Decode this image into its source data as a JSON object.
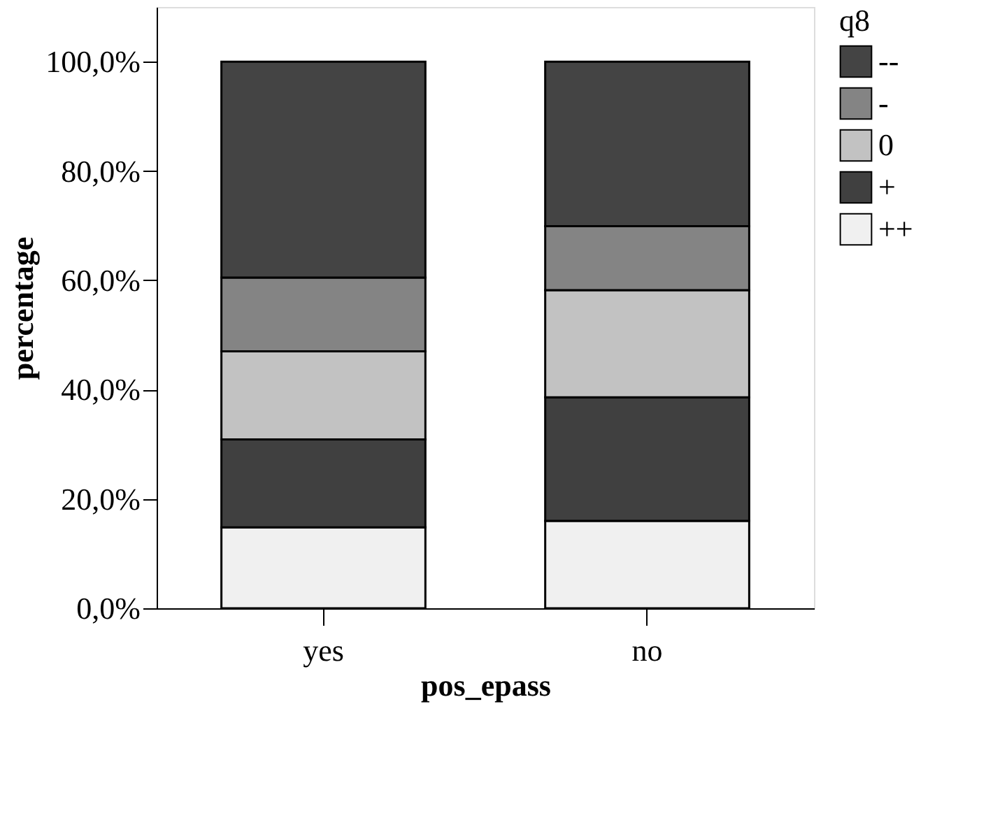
{
  "chart_data": {
    "type": "bar",
    "stacked": true,
    "xlabel": "pos_epass",
    "ylabel": "percentage",
    "legend_title": "q8",
    "legend": "top right",
    "grid": false,
    "categories": [
      "yes",
      "no"
    ],
    "series": [
      {
        "name": "++",
        "color": "#f0f0f0",
        "values": [
          14.8,
          16.0
        ]
      },
      {
        "name": "+",
        "color": "#404040",
        "values": [
          16.1,
          22.6
        ]
      },
      {
        "name": "0",
        "color": "#c2c2c2",
        "values": [
          16.1,
          19.6
        ]
      },
      {
        "name": "-",
        "color": "#848484",
        "values": [
          13.5,
          11.7
        ]
      },
      {
        "name": "--",
        "color": "#444444",
        "values": [
          39.5,
          30.1
        ]
      }
    ],
    "ylim": [
      0,
      110
    ],
    "yticks": [
      {
        "value": 0,
        "label": "0,0%"
      },
      {
        "value": 20,
        "label": "20,0%"
      },
      {
        "value": 40,
        "label": "40,0%"
      },
      {
        "value": 60,
        "label": "60,0%"
      },
      {
        "value": 80,
        "label": "80,0%"
      },
      {
        "value": 100,
        "label": "100,0%"
      }
    ]
  }
}
